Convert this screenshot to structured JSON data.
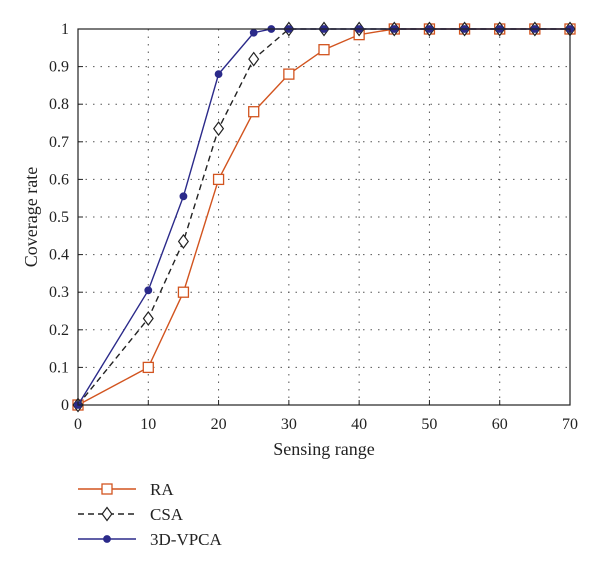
{
  "chart_data": {
    "type": "line",
    "xlabel": "Sensing range",
    "ylabel": "Coverage rate",
    "xlim": [
      0,
      70
    ],
    "ylim": [
      0,
      1
    ],
    "xticks": [
      0,
      10,
      20,
      30,
      40,
      50,
      60,
      70
    ],
    "yticks": [
      0,
      0.1,
      0.2,
      0.3,
      0.4,
      0.5,
      0.6,
      0.7,
      0.8,
      0.9,
      1
    ],
    "grid": true,
    "legend_position": "bottom-left",
    "series": [
      {
        "name": "RA",
        "color": "#d2541f",
        "marker": "square",
        "dash": "solid",
        "x": [
          0,
          10,
          15,
          20,
          25,
          30,
          35,
          40,
          45,
          50,
          55,
          60,
          65,
          70
        ],
        "y": [
          0,
          0.1,
          0.3,
          0.6,
          0.78,
          0.88,
          0.945,
          0.985,
          1,
          1,
          1,
          1,
          1,
          1
        ]
      },
      {
        "name": "CSA",
        "color": "#222222",
        "marker": "diamond",
        "dash": "dashed",
        "x": [
          0,
          10,
          15,
          20,
          25,
          30,
          35,
          40,
          45,
          50,
          55,
          60,
          65,
          70
        ],
        "y": [
          0,
          0.23,
          0.435,
          0.735,
          0.92,
          1,
          1,
          1,
          1,
          1,
          1,
          1,
          1,
          1
        ]
      },
      {
        "name": "3D-VPCA",
        "color": "#2b2a8a",
        "marker": "circle",
        "dash": "solid",
        "x": [
          0,
          10,
          15,
          20,
          25,
          27.5,
          30,
          35,
          40,
          45,
          50,
          55,
          60,
          65,
          70
        ],
        "y": [
          0,
          0.305,
          0.555,
          0.88,
          0.99,
          1,
          1,
          1,
          1,
          1,
          1,
          1,
          1,
          1,
          1
        ]
      }
    ]
  }
}
